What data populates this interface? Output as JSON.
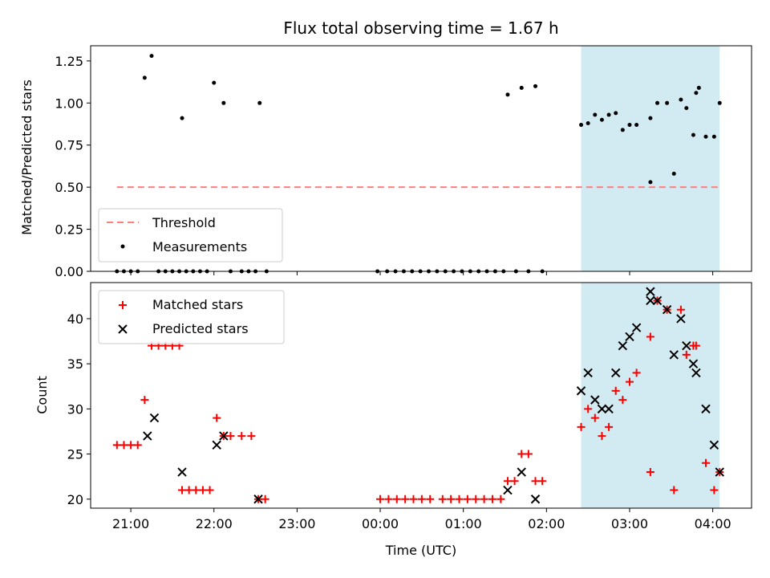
{
  "chart_data": [
    {
      "type": "scatter",
      "title": "Flux total observing time = 1.67 h",
      "xlabel": "",
      "ylabel": "Matched/Predicted stars",
      "ylim": [
        0,
        1.34
      ],
      "yticks": [
        "0.00",
        "0.25",
        "0.50",
        "0.75",
        "1.00",
        "1.25"
      ],
      "legend_position": "bottom-left",
      "threshold": {
        "name": "Threshold",
        "value": 0.5,
        "x_start": "20:50",
        "x_end": "04:05",
        "color": "#ff7f7f",
        "style": "dashed"
      },
      "highlight_span": {
        "start": "02:25",
        "end": "04:05",
        "color": "#add8e6"
      },
      "series": [
        {
          "name": "Measurements",
          "marker": "dot",
          "color": "#000000",
          "points": [
            [
              "20:50",
              0
            ],
            [
              "20:55",
              0
            ],
            [
              "21:00",
              0
            ],
            [
              "21:05",
              0
            ],
            [
              "21:10",
              1.15
            ],
            [
              "21:15",
              1.28
            ],
            [
              "21:20",
              0
            ],
            [
              "21:25",
              0
            ],
            [
              "21:30",
              0
            ],
            [
              "21:35",
              0
            ],
            [
              "21:37",
              0.91
            ],
            [
              "21:40",
              0
            ],
            [
              "21:45",
              0
            ],
            [
              "21:50",
              0
            ],
            [
              "21:55",
              0
            ],
            [
              "22:00",
              1.12
            ],
            [
              "22:07",
              1.0
            ],
            [
              "22:12",
              0
            ],
            [
              "22:20",
              0
            ],
            [
              "22:25",
              0
            ],
            [
              "22:30",
              0
            ],
            [
              "22:33",
              1.0
            ],
            [
              "22:38",
              0
            ],
            [
              "23:58",
              0
            ],
            [
              "00:05",
              0
            ],
            [
              "00:11",
              0
            ],
            [
              "00:17",
              0
            ],
            [
              "00:23",
              0
            ],
            [
              "00:29",
              0
            ],
            [
              "00:35",
              0
            ],
            [
              "00:41",
              0
            ],
            [
              "00:47",
              0
            ],
            [
              "00:53",
              0
            ],
            [
              "00:59",
              0
            ],
            [
              "01:05",
              0
            ],
            [
              "01:11",
              0
            ],
            [
              "01:17",
              0
            ],
            [
              "01:23",
              0
            ],
            [
              "01:29",
              0
            ],
            [
              "01:32",
              1.05
            ],
            [
              "01:38",
              0
            ],
            [
              "01:42",
              1.09
            ],
            [
              "01:47",
              0
            ],
            [
              "01:52",
              1.1
            ],
            [
              "01:57",
              0
            ],
            [
              "02:25",
              0.87
            ],
            [
              "02:30",
              0.88
            ],
            [
              "02:35",
              0.93
            ],
            [
              "02:40",
              0.9
            ],
            [
              "02:45",
              0.93
            ],
            [
              "02:50",
              0.94
            ],
            [
              "02:55",
              0.84
            ],
            [
              "03:00",
              0.87
            ],
            [
              "03:05",
              0.87
            ],
            [
              "03:15",
              0.53
            ],
            [
              "03:15",
              0.91
            ],
            [
              "03:20",
              1.0
            ],
            [
              "03:27",
              1.0
            ],
            [
              "03:32",
              0.58
            ],
            [
              "03:37",
              1.02
            ],
            [
              "03:41",
              0.97
            ],
            [
              "03:46",
              0.81
            ],
            [
              "03:48",
              1.06
            ],
            [
              "03:50",
              1.09
            ],
            [
              "03:55",
              0.8
            ],
            [
              "04:01",
              0.8
            ],
            [
              "04:05",
              1.0
            ]
          ]
        }
      ]
    },
    {
      "type": "scatter",
      "title": "",
      "xlabel": "Time (UTC)",
      "ylabel": "Count",
      "ylim": [
        19,
        44
      ],
      "yticks": [
        "20",
        "25",
        "30",
        "35",
        "40"
      ],
      "xticks": [
        "21:00",
        "22:00",
        "23:00",
        "00:00",
        "01:00",
        "02:00",
        "03:00",
        "04:00"
      ],
      "legend_position": "top-left",
      "highlight_span": {
        "start": "02:25",
        "end": "04:05",
        "color": "#add8e6"
      },
      "series": [
        {
          "name": "Matched stars",
          "marker": "plus",
          "color": "#ff0000",
          "points": [
            [
              "20:50",
              26
            ],
            [
              "20:55",
              26
            ],
            [
              "21:00",
              26
            ],
            [
              "21:05",
              26
            ],
            [
              "21:10",
              31
            ],
            [
              "21:15",
              37
            ],
            [
              "21:20",
              37
            ],
            [
              "21:25",
              37
            ],
            [
              "21:30",
              37
            ],
            [
              "21:35",
              37
            ],
            [
              "21:37",
              21
            ],
            [
              "21:42",
              21
            ],
            [
              "21:47",
              21
            ],
            [
              "21:52",
              21
            ],
            [
              "21:57",
              21
            ],
            [
              "22:02",
              29
            ],
            [
              "22:07",
              27
            ],
            [
              "22:12",
              27
            ],
            [
              "22:20",
              27
            ],
            [
              "22:27",
              27
            ],
            [
              "22:32",
              20
            ],
            [
              "22:37",
              20
            ],
            [
              "00:00",
              20
            ],
            [
              "00:06",
              20
            ],
            [
              "00:12",
              20
            ],
            [
              "00:18",
              20
            ],
            [
              "00:24",
              20
            ],
            [
              "00:30",
              20
            ],
            [
              "00:36",
              20
            ],
            [
              "00:45",
              20
            ],
            [
              "00:51",
              20
            ],
            [
              "00:57",
              20
            ],
            [
              "01:03",
              20
            ],
            [
              "01:09",
              20
            ],
            [
              "01:15",
              20
            ],
            [
              "01:21",
              20
            ],
            [
              "01:27",
              20
            ],
            [
              "01:32",
              22
            ],
            [
              "01:37",
              22
            ],
            [
              "01:42",
              25
            ],
            [
              "01:47",
              25
            ],
            [
              "01:52",
              22
            ],
            [
              "01:57",
              22
            ],
            [
              "02:25",
              28
            ],
            [
              "02:30",
              30
            ],
            [
              "02:35",
              29
            ],
            [
              "02:40",
              27
            ],
            [
              "02:45",
              28
            ],
            [
              "02:50",
              32
            ],
            [
              "02:55",
              31
            ],
            [
              "03:00",
              33
            ],
            [
              "03:05",
              34
            ],
            [
              "03:15",
              23
            ],
            [
              "03:15",
              38
            ],
            [
              "03:20",
              42
            ],
            [
              "03:27",
              41
            ],
            [
              "03:32",
              21
            ],
            [
              "03:37",
              41
            ],
            [
              "03:41",
              36
            ],
            [
              "03:46",
              37
            ],
            [
              "03:48",
              37
            ],
            [
              "03:55",
              24
            ],
            [
              "04:01",
              21
            ],
            [
              "04:05",
              23
            ]
          ]
        },
        {
          "name": "Predicted stars",
          "marker": "x",
          "color": "#000000",
          "points": [
            [
              "21:12",
              27
            ],
            [
              "21:17",
              29
            ],
            [
              "21:37",
              23
            ],
            [
              "22:02",
              26
            ],
            [
              "22:07",
              27
            ],
            [
              "22:32",
              20
            ],
            [
              "01:32",
              21
            ],
            [
              "01:42",
              23
            ],
            [
              "01:52",
              20
            ],
            [
              "02:25",
              32
            ],
            [
              "02:30",
              34
            ],
            [
              "02:35",
              31
            ],
            [
              "02:40",
              30
            ],
            [
              "02:45",
              30
            ],
            [
              "02:50",
              34
            ],
            [
              "02:55",
              37
            ],
            [
              "03:00",
              38
            ],
            [
              "03:05",
              39
            ],
            [
              "03:15",
              43
            ],
            [
              "03:15",
              42
            ],
            [
              "03:20",
              42
            ],
            [
              "03:27",
              41
            ],
            [
              "03:32",
              36
            ],
            [
              "03:37",
              40
            ],
            [
              "03:41",
              37
            ],
            [
              "03:46",
              35
            ],
            [
              "03:48",
              34
            ],
            [
              "03:55",
              30
            ],
            [
              "04:01",
              26
            ],
            [
              "04:05",
              23
            ]
          ]
        }
      ]
    }
  ]
}
